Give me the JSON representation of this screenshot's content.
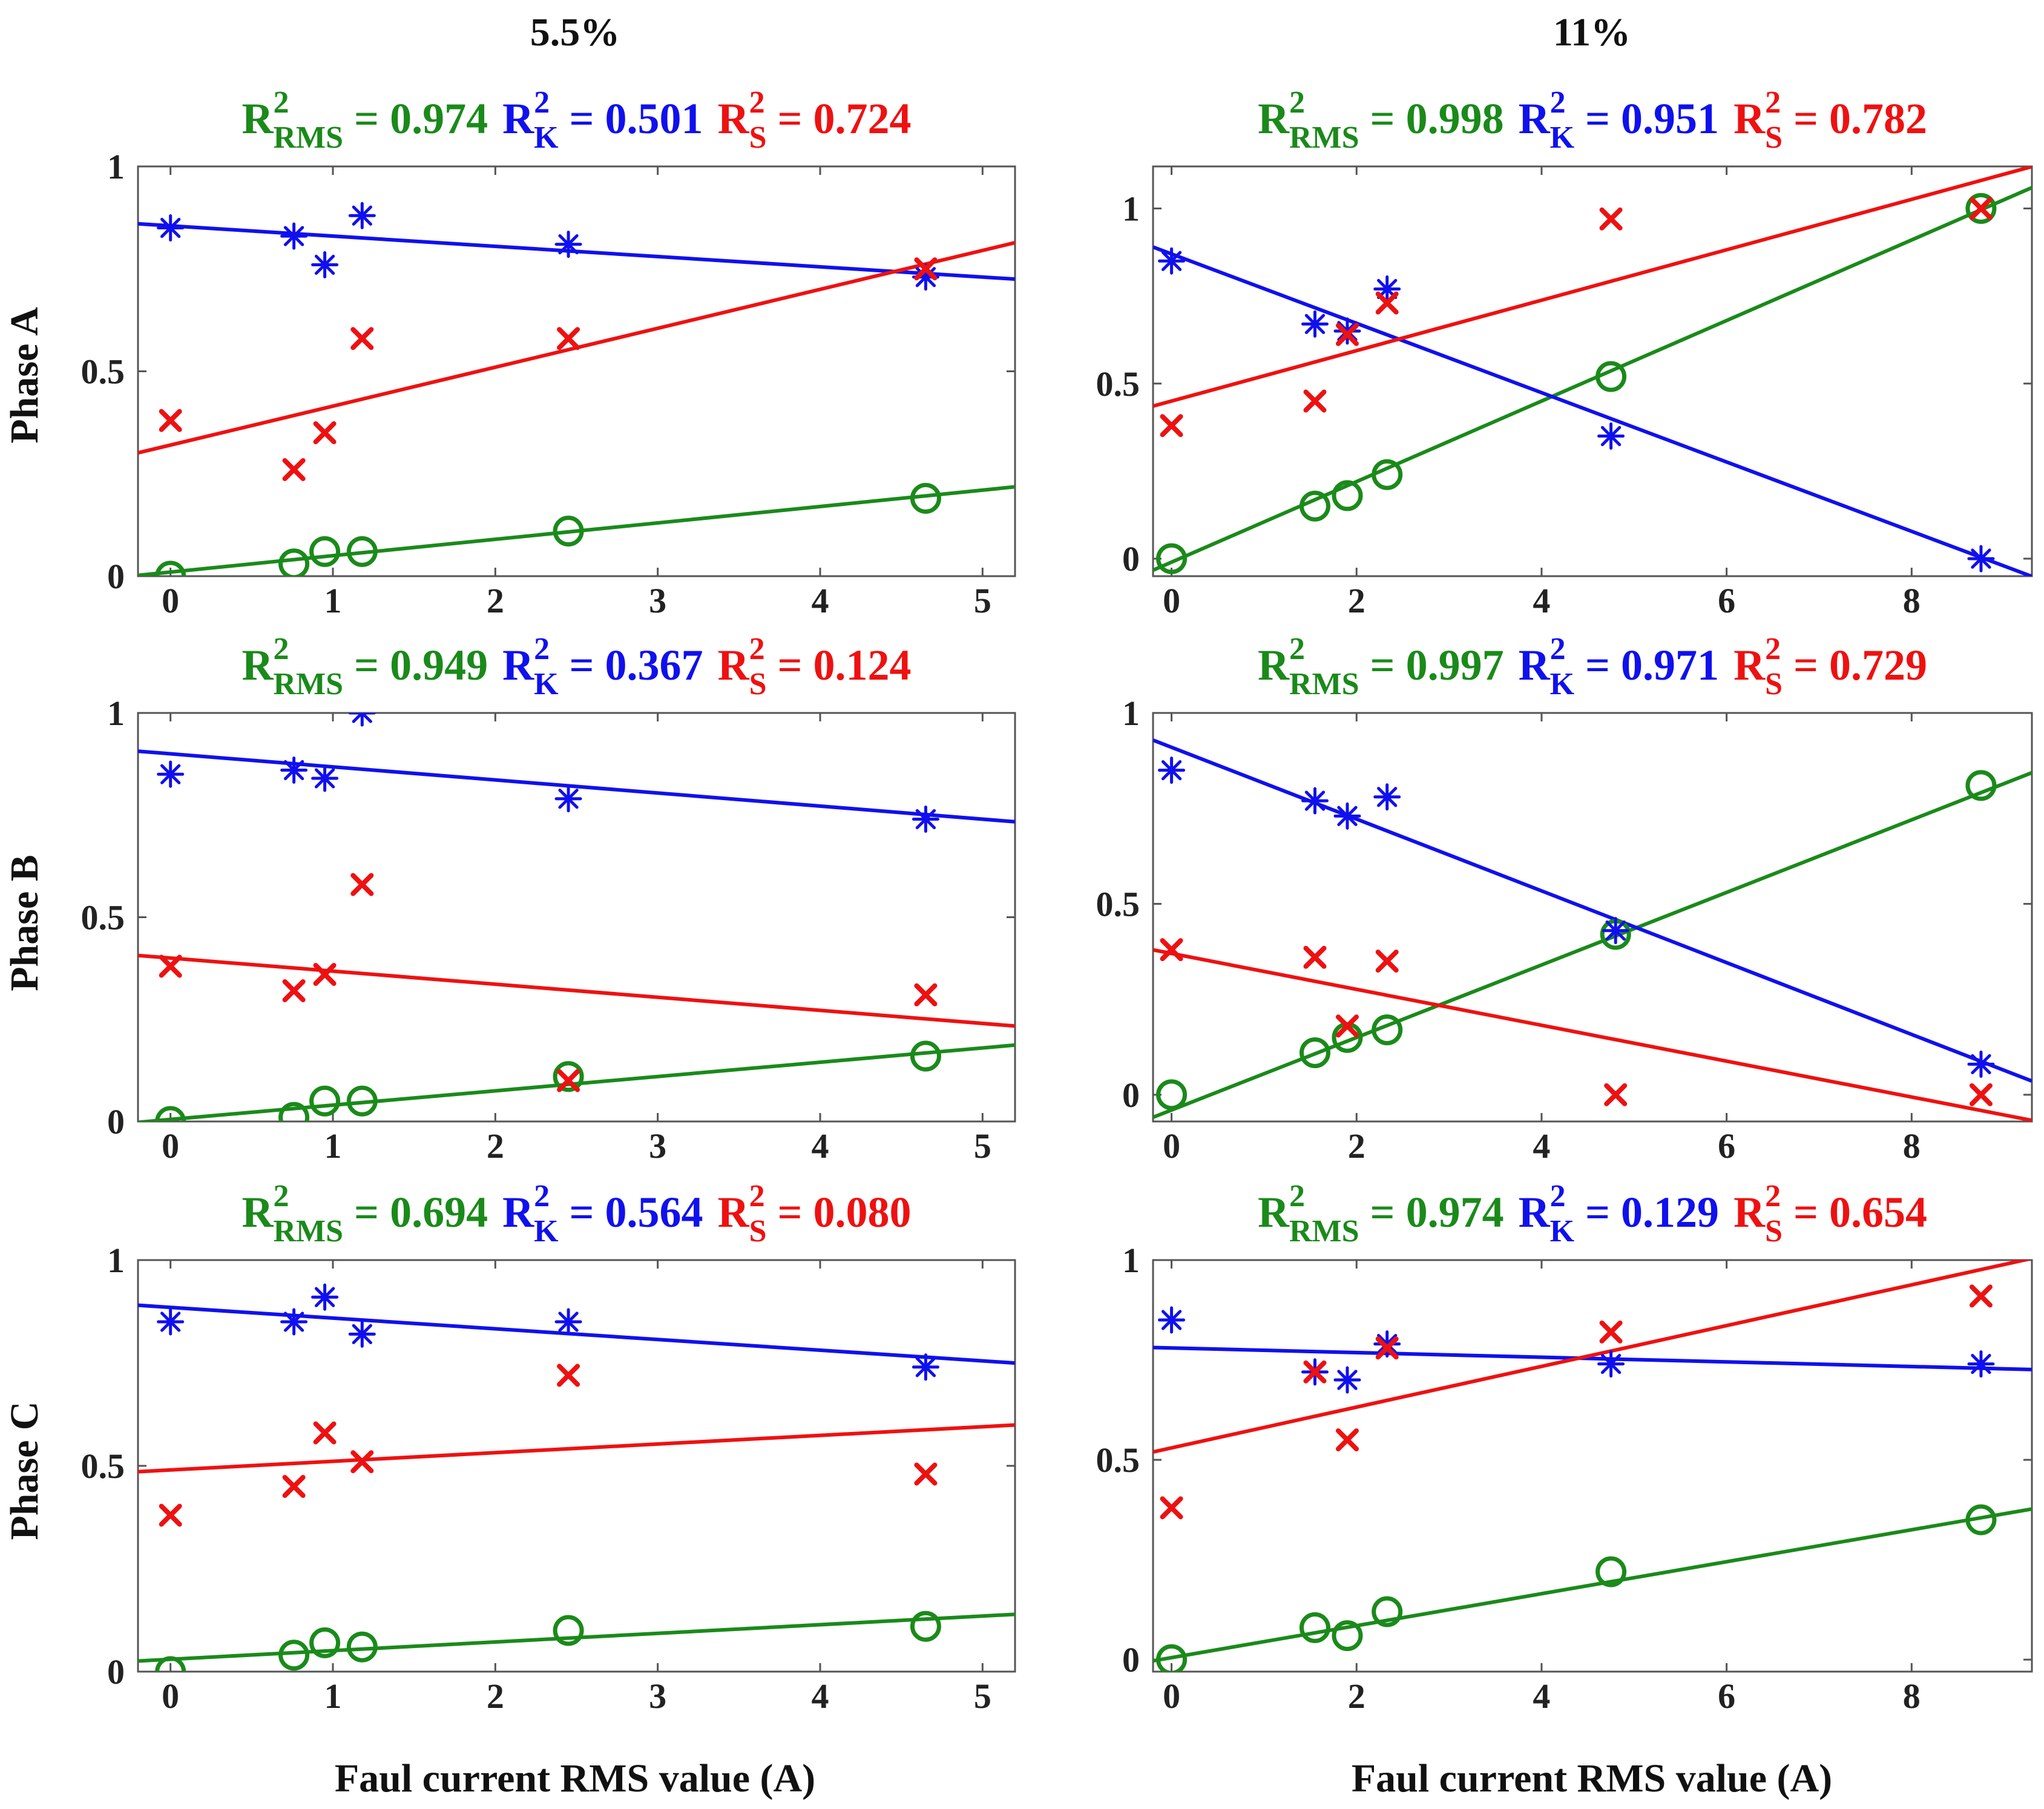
{
  "colors": {
    "rms": "#1a8a1a",
    "k": "#1010ee",
    "s": "#ee1111",
    "axis": "#555555"
  },
  "column_titles": [
    "5.5%",
    "11%"
  ],
  "row_labels": [
    "Phase A",
    "Phase B",
    "Phase C"
  ],
  "x_axis_label": "Faul current RMS value (A)",
  "r2_labels": {
    "eq": " = ",
    "rms_sub": "RMS",
    "k_sub": "K",
    "s_sub": "S",
    "r": "R",
    "sup": "2"
  },
  "chart_data": [
    {
      "type": "scatter",
      "column": "5.5%",
      "row": "Phase A",
      "xlim": [
        -0.2,
        5.2
      ],
      "ylim": [
        0,
        1
      ],
      "xticks": [
        "0",
        "1",
        "2",
        "3",
        "4",
        "5"
      ],
      "yticks": [
        "0",
        "0.5",
        "1"
      ],
      "r2": {
        "rms": "0.974",
        "k": "0.501",
        "s": "0.724"
      },
      "series": [
        {
          "name": "RMS",
          "marker": "circle",
          "x": [
            0,
            0.76,
            0.95,
            1.18,
            2.45,
            4.65
          ],
          "y": [
            0.0,
            0.03,
            0.06,
            0.06,
            0.11,
            0.19
          ],
          "fit": [
            0.01,
            0.04
          ]
        },
        {
          "name": "K",
          "marker": "asterisk",
          "x": [
            0,
            0.76,
            0.95,
            1.18,
            2.45,
            4.65
          ],
          "y": [
            0.85,
            0.83,
            0.76,
            0.88,
            0.81,
            0.73
          ],
          "fit": [
            0.855,
            -0.025
          ]
        },
        {
          "name": "S",
          "marker": "x",
          "x": [
            0,
            0.76,
            0.95,
            1.18,
            2.45,
            4.65
          ],
          "y": [
            0.38,
            0.26,
            0.35,
            0.58,
            0.58,
            0.75
          ],
          "fit": [
            0.32,
            0.095
          ]
        }
      ]
    },
    {
      "type": "scatter",
      "column": "11%",
      "row": "Phase A",
      "xlim": [
        -0.2,
        9.3
      ],
      "ylim": [
        -0.05,
        1.12
      ],
      "xticks": [
        "0",
        "2",
        "4",
        "6",
        "8"
      ],
      "yticks": [
        "0",
        "0.5",
        "1"
      ],
      "r2": {
        "rms": "0.998",
        "k": "0.951",
        "s": "0.782"
      },
      "series": [
        {
          "name": "RMS",
          "marker": "circle",
          "x": [
            0,
            1.55,
            1.9,
            2.33,
            4.75,
            8.75
          ],
          "y": [
            0.0,
            0.15,
            0.18,
            0.24,
            0.52,
            1.0
          ],
          "fit": [
            -0.01,
            0.115
          ]
        },
        {
          "name": "K",
          "marker": "asterisk",
          "x": [
            0,
            1.55,
            1.9,
            2.33,
            4.75,
            8.75
          ],
          "y": [
            0.85,
            0.67,
            0.65,
            0.77,
            0.35,
            0.0
          ],
          "fit": [
            0.87,
            -0.099
          ]
        },
        {
          "name": "S",
          "marker": "x",
          "x": [
            0,
            1.55,
            1.9,
            2.33,
            4.75,
            8.75
          ],
          "y": [
            0.38,
            0.45,
            0.64,
            0.73,
            0.97,
            1.0
          ],
          "fit": [
            0.45,
            0.072
          ]
        }
      ]
    },
    {
      "type": "scatter",
      "column": "5.5%",
      "row": "Phase B",
      "xlim": [
        -0.2,
        5.2
      ],
      "ylim": [
        0,
        1
      ],
      "xticks": [
        "0",
        "1",
        "2",
        "3",
        "4",
        "5"
      ],
      "yticks": [
        "0",
        "0.5",
        "1"
      ],
      "r2": {
        "rms": "0.949",
        "k": "0.367",
        "s": "0.124"
      },
      "series": [
        {
          "name": "RMS",
          "marker": "circle",
          "x": [
            0,
            0.76,
            0.95,
            1.18,
            2.45,
            4.65
          ],
          "y": [
            0.0,
            0.01,
            0.05,
            0.05,
            0.11,
            0.16
          ],
          "fit": [
            0.005,
            0.035
          ]
        },
        {
          "name": "K",
          "marker": "asterisk",
          "x": [
            0,
            0.76,
            0.95,
            1.18,
            2.45,
            4.65
          ],
          "y": [
            0.85,
            0.86,
            0.84,
            1.0,
            0.79,
            0.74
          ],
          "fit": [
            0.9,
            -0.032
          ]
        },
        {
          "name": "S",
          "marker": "x",
          "x": [
            0,
            0.76,
            0.95,
            1.18,
            2.45,
            4.65
          ],
          "y": [
            0.38,
            0.32,
            0.36,
            0.58,
            0.1,
            0.31
          ],
          "fit": [
            0.4,
            -0.032
          ]
        }
      ]
    },
    {
      "type": "scatter",
      "column": "11%",
      "row": "Phase B",
      "xlim": [
        -0.2,
        9.3
      ],
      "ylim": [
        -0.07,
        1.0
      ],
      "xticks": [
        "0",
        "2",
        "4",
        "6",
        "8"
      ],
      "yticks": [
        "0",
        "0.5",
        "1"
      ],
      "r2": {
        "rms": "0.997",
        "k": "0.971",
        "s": "0.729"
      },
      "series": [
        {
          "name": "RMS",
          "marker": "circle",
          "x": [
            0,
            1.55,
            1.9,
            2.33,
            4.8,
            8.75
          ],
          "y": [
            0.0,
            0.11,
            0.15,
            0.17,
            0.42,
            0.81
          ],
          "fit": [
            -0.04,
            0.095
          ]
        },
        {
          "name": "K",
          "marker": "asterisk",
          "x": [
            0,
            1.55,
            1.9,
            2.33,
            4.8,
            8.75
          ],
          "y": [
            0.85,
            0.77,
            0.73,
            0.78,
            0.43,
            0.08
          ],
          "fit": [
            0.91,
            -0.094
          ]
        },
        {
          "name": "S",
          "marker": "x",
          "x": [
            0,
            1.55,
            1.9,
            2.33,
            4.8,
            8.75
          ],
          "y": [
            0.38,
            0.36,
            0.18,
            0.35,
            0.0,
            0.0
          ],
          "fit": [
            0.37,
            -0.047
          ]
        }
      ]
    },
    {
      "type": "scatter",
      "column": "5.5%",
      "row": "Phase C",
      "xlim": [
        -0.2,
        5.2
      ],
      "ylim": [
        0,
        1
      ],
      "xticks": [
        "0",
        "1",
        "2",
        "3",
        "4",
        "5"
      ],
      "yticks": [
        "0",
        "0.5",
        "1"
      ],
      "r2": {
        "rms": "0.694",
        "k": "0.564",
        "s": "0.080"
      },
      "series": [
        {
          "name": "RMS",
          "marker": "circle",
          "x": [
            0,
            0.76,
            0.95,
            1.18,
            2.45,
            4.65
          ],
          "y": [
            0.0,
            0.04,
            0.07,
            0.06,
            0.1,
            0.11
          ],
          "fit": [
            0.03,
            0.021
          ]
        },
        {
          "name": "K",
          "marker": "asterisk",
          "x": [
            0,
            0.76,
            0.95,
            1.18,
            2.45,
            4.65
          ],
          "y": [
            0.85,
            0.85,
            0.91,
            0.82,
            0.85,
            0.74
          ],
          "fit": [
            0.885,
            -0.026
          ]
        },
        {
          "name": "S",
          "marker": "x",
          "x": [
            0,
            0.76,
            0.95,
            1.18,
            2.45,
            4.65
          ],
          "y": [
            0.38,
            0.45,
            0.58,
            0.51,
            0.72,
            0.48
          ],
          "fit": [
            0.49,
            0.021
          ]
        }
      ]
    },
    {
      "type": "scatter",
      "column": "11%",
      "row": "Phase C",
      "xlim": [
        -0.2,
        9.3
      ],
      "ylim": [
        -0.03,
        1.0
      ],
      "xticks": [
        "0",
        "2",
        "4",
        "6",
        "8"
      ],
      "yticks": [
        "0",
        "0.5",
        "1"
      ],
      "r2": {
        "rms": "0.974",
        "k": "0.129",
        "s": "0.654"
      },
      "series": [
        {
          "name": "RMS",
          "marker": "circle",
          "x": [
            0,
            1.55,
            1.9,
            2.33,
            4.75,
            8.75
          ],
          "y": [
            0.0,
            0.08,
            0.06,
            0.12,
            0.22,
            0.35
          ],
          "fit": [
            0.005,
            0.04
          ]
        },
        {
          "name": "K",
          "marker": "asterisk",
          "x": [
            0,
            1.55,
            1.9,
            2.33,
            4.75,
            8.75
          ],
          "y": [
            0.85,
            0.72,
            0.7,
            0.79,
            0.74,
            0.74
          ],
          "fit": [
            0.78,
            -0.0058
          ]
        },
        {
          "name": "S",
          "marker": "x",
          "x": [
            0,
            1.55,
            1.9,
            2.33,
            4.75,
            8.75
          ],
          "y": [
            0.38,
            0.72,
            0.55,
            0.78,
            0.82,
            0.91
          ],
          "fit": [
            0.53,
            0.051
          ]
        }
      ]
    }
  ]
}
